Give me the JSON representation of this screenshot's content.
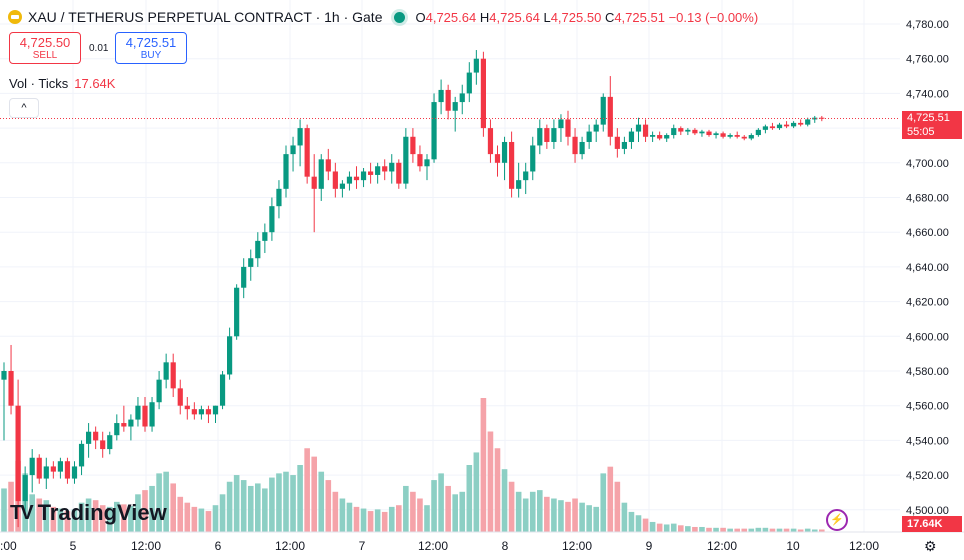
{
  "header": {
    "symbol_icon": "gold-coin-icon",
    "title": "XAU / TETHERUS PERPETUAL CONTRACT · 1h · Gate",
    "status_icon": "market-open-dot-icon",
    "o_label": "O",
    "o_value": "4,725.64",
    "h_label": "H",
    "h_value": "4,725.64",
    "l_label": "L",
    "l_value": "4,725.50",
    "c_label": "C",
    "c_value": "4,725.51",
    "change": "−0.13 (−0.00%)"
  },
  "trade": {
    "sell_price": "4,725.50",
    "sell_label": "SELL",
    "spread": "0.01",
    "buy_price": "4,725.51",
    "buy_label": "BUY"
  },
  "volume_legend": {
    "label": "Vol · Ticks",
    "value": "17.64K"
  },
  "collapse_icon": "chevron-up-icon",
  "logo": {
    "mark": "TV",
    "text": "TradingView"
  },
  "price_badge": {
    "price": "4,725.51",
    "countdown": "55:05"
  },
  "volume_badge": "17.64K",
  "bolt_icon": "lightning-icon",
  "settings_icon": "gear-icon",
  "colors": {
    "up": "#089981",
    "down": "#f23645",
    "up_vol": "#8ccfc4",
    "down_vol": "#f5a3a9",
    "grid": "#f0f3fa"
  },
  "chart_data": {
    "type": "candlestick",
    "x_tick_labels": [
      "5",
      "12:00",
      "6",
      "12:00",
      "7",
      "12:00",
      "8",
      "12:00",
      "9",
      "12:00",
      "10",
      "12:00"
    ],
    "y_tick_labels": [
      "4,780.00",
      "4,760.00",
      "4,740.00",
      "4,720.00",
      "4,700.00",
      "4,680.00",
      "4,660.00",
      "4,640.00",
      "4,620.00",
      "4,600.00",
      "4,580.00",
      "4,560.00",
      "4,540.00",
      "4,520.00",
      "4,500.00"
    ],
    "ylim": [
      4487,
      4792
    ],
    "last_price": 4725.51,
    "candles": [
      {
        "o": 4575,
        "h": 4585,
        "l": 4540,
        "c": 4580,
        "v": 52
      },
      {
        "o": 4580,
        "h": 4595,
        "l": 4555,
        "c": 4560,
        "v": 60
      },
      {
        "o": 4560,
        "h": 4575,
        "l": 4490,
        "c": 4505,
        "v": 85
      },
      {
        "o": 4505,
        "h": 4525,
        "l": 4495,
        "c": 4520,
        "v": 70
      },
      {
        "o": 4520,
        "h": 4535,
        "l": 4510,
        "c": 4530,
        "v": 45
      },
      {
        "o": 4530,
        "h": 4532,
        "l": 4515,
        "c": 4518,
        "v": 40
      },
      {
        "o": 4518,
        "h": 4530,
        "l": 4512,
        "c": 4525,
        "v": 38
      },
      {
        "o": 4525,
        "h": 4528,
        "l": 4518,
        "c": 4522,
        "v": 30
      },
      {
        "o": 4522,
        "h": 4530,
        "l": 4518,
        "c": 4528,
        "v": 28
      },
      {
        "o": 4528,
        "h": 4530,
        "l": 4515,
        "c": 4518,
        "v": 25
      },
      {
        "o": 4518,
        "h": 4528,
        "l": 4515,
        "c": 4525,
        "v": 27
      },
      {
        "o": 4525,
        "h": 4540,
        "l": 4520,
        "c": 4538,
        "v": 35
      },
      {
        "o": 4538,
        "h": 4550,
        "l": 4530,
        "c": 4545,
        "v": 40
      },
      {
        "o": 4545,
        "h": 4548,
        "l": 4535,
        "c": 4540,
        "v": 38
      },
      {
        "o": 4540,
        "h": 4545,
        "l": 4530,
        "c": 4535,
        "v": 32
      },
      {
        "o": 4535,
        "h": 4545,
        "l": 4532,
        "c": 4543,
        "v": 30
      },
      {
        "o": 4543,
        "h": 4555,
        "l": 4540,
        "c": 4550,
        "v": 36
      },
      {
        "o": 4550,
        "h": 4560,
        "l": 4545,
        "c": 4548,
        "v": 33
      },
      {
        "o": 4548,
        "h": 4555,
        "l": 4540,
        "c": 4552,
        "v": 31
      },
      {
        "o": 4552,
        "h": 4565,
        "l": 4548,
        "c": 4560,
        "v": 45
      },
      {
        "o": 4560,
        "h": 4565,
        "l": 4545,
        "c": 4548,
        "v": 50
      },
      {
        "o": 4548,
        "h": 4565,
        "l": 4545,
        "c": 4562,
        "v": 55
      },
      {
        "o": 4562,
        "h": 4580,
        "l": 4558,
        "c": 4575,
        "v": 70
      },
      {
        "o": 4575,
        "h": 4590,
        "l": 4570,
        "c": 4585,
        "v": 72
      },
      {
        "o": 4585,
        "h": 4590,
        "l": 4565,
        "c": 4570,
        "v": 58
      },
      {
        "o": 4570,
        "h": 4575,
        "l": 4555,
        "c": 4560,
        "v": 42
      },
      {
        "o": 4560,
        "h": 4565,
        "l": 4552,
        "c": 4558,
        "v": 35
      },
      {
        "o": 4558,
        "h": 4562,
        "l": 4552,
        "c": 4555,
        "v": 30
      },
      {
        "o": 4555,
        "h": 4560,
        "l": 4552,
        "c": 4558,
        "v": 28
      },
      {
        "o": 4558,
        "h": 4560,
        "l": 4550,
        "c": 4555,
        "v": 25
      },
      {
        "o": 4555,
        "h": 4560,
        "l": 4550,
        "c": 4560,
        "v": 32
      },
      {
        "o": 4560,
        "h": 4580,
        "l": 4558,
        "c": 4578,
        "v": 45
      },
      {
        "o": 4578,
        "h": 4605,
        "l": 4575,
        "c": 4600,
        "v": 60
      },
      {
        "o": 4600,
        "h": 4630,
        "l": 4598,
        "c": 4628,
        "v": 68
      },
      {
        "o": 4628,
        "h": 4645,
        "l": 4622,
        "c": 4640,
        "v": 62
      },
      {
        "o": 4640,
        "h": 4650,
        "l": 4632,
        "c": 4645,
        "v": 55
      },
      {
        "o": 4645,
        "h": 4660,
        "l": 4640,
        "c": 4655,
        "v": 58
      },
      {
        "o": 4655,
        "h": 4665,
        "l": 4648,
        "c": 4660,
        "v": 52
      },
      {
        "o": 4660,
        "h": 4680,
        "l": 4655,
        "c": 4675,
        "v": 65
      },
      {
        "o": 4675,
        "h": 4690,
        "l": 4668,
        "c": 4685,
        "v": 70
      },
      {
        "o": 4685,
        "h": 4710,
        "l": 4680,
        "c": 4705,
        "v": 72
      },
      {
        "o": 4705,
        "h": 4715,
        "l": 4695,
        "c": 4710,
        "v": 68
      },
      {
        "o": 4710,
        "h": 4725,
        "l": 4698,
        "c": 4720,
        "v": 80
      },
      {
        "o": 4720,
        "h": 4722,
        "l": 4688,
        "c": 4692,
        "v": 100
      },
      {
        "o": 4692,
        "h": 4705,
        "l": 4660,
        "c": 4685,
        "v": 90
      },
      {
        "o": 4685,
        "h": 4705,
        "l": 4678,
        "c": 4702,
        "v": 72
      },
      {
        "o": 4702,
        "h": 4708,
        "l": 4690,
        "c": 4695,
        "v": 62
      },
      {
        "o": 4695,
        "h": 4700,
        "l": 4680,
        "c": 4685,
        "v": 48
      },
      {
        "o": 4685,
        "h": 4690,
        "l": 4680,
        "c": 4688,
        "v": 40
      },
      {
        "o": 4688,
        "h": 4695,
        "l": 4684,
        "c": 4692,
        "v": 35
      },
      {
        "o": 4692,
        "h": 4698,
        "l": 4685,
        "c": 4690,
        "v": 30
      },
      {
        "o": 4690,
        "h": 4697,
        "l": 4686,
        "c": 4695,
        "v": 28
      },
      {
        "o": 4695,
        "h": 4700,
        "l": 4688,
        "c": 4693,
        "v": 25
      },
      {
        "o": 4693,
        "h": 4700,
        "l": 4688,
        "c": 4698,
        "v": 27
      },
      {
        "o": 4698,
        "h": 4702,
        "l": 4690,
        "c": 4695,
        "v": 24
      },
      {
        "o": 4695,
        "h": 4705,
        "l": 4688,
        "c": 4700,
        "v": 30
      },
      {
        "o": 4700,
        "h": 4702,
        "l": 4685,
        "c": 4688,
        "v": 32
      },
      {
        "o": 4688,
        "h": 4720,
        "l": 4685,
        "c": 4715,
        "v": 55
      },
      {
        "o": 4715,
        "h": 4720,
        "l": 4700,
        "c": 4705,
        "v": 48
      },
      {
        "o": 4705,
        "h": 4710,
        "l": 4695,
        "c": 4698,
        "v": 40
      },
      {
        "o": 4698,
        "h": 4705,
        "l": 4690,
        "c": 4702,
        "v": 32
      },
      {
        "o": 4702,
        "h": 4740,
        "l": 4700,
        "c": 4735,
        "v": 62
      },
      {
        "o": 4735,
        "h": 4748,
        "l": 4728,
        "c": 4742,
        "v": 70
      },
      {
        "o": 4742,
        "h": 4745,
        "l": 4725,
        "c": 4730,
        "v": 55
      },
      {
        "o": 4730,
        "h": 4738,
        "l": 4718,
        "c": 4735,
        "v": 45
      },
      {
        "o": 4735,
        "h": 4745,
        "l": 4728,
        "c": 4740,
        "v": 48
      },
      {
        "o": 4740,
        "h": 4758,
        "l": 4735,
        "c": 4752,
        "v": 80
      },
      {
        "o": 4752,
        "h": 4765,
        "l": 4745,
        "c": 4760,
        "v": 95
      },
      {
        "o": 4760,
        "h": 4764,
        "l": 4715,
        "c": 4720,
        "v": 160
      },
      {
        "o": 4720,
        "h": 4725,
        "l": 4700,
        "c": 4705,
        "v": 120
      },
      {
        "o": 4705,
        "h": 4710,
        "l": 4692,
        "c": 4700,
        "v": 100
      },
      {
        "o": 4700,
        "h": 4715,
        "l": 4690,
        "c": 4712,
        "v": 75
      },
      {
        "o": 4712,
        "h": 4718,
        "l": 4680,
        "c": 4685,
        "v": 60
      },
      {
        "o": 4685,
        "h": 4700,
        "l": 4680,
        "c": 4690,
        "v": 48
      },
      {
        "o": 4690,
        "h": 4700,
        "l": 4682,
        "c": 4695,
        "v": 40
      },
      {
        "o": 4695,
        "h": 4715,
        "l": 4690,
        "c": 4710,
        "v": 48
      },
      {
        "o": 4710,
        "h": 4725,
        "l": 4705,
        "c": 4720,
        "v": 50
      },
      {
        "o": 4720,
        "h": 4722,
        "l": 4708,
        "c": 4712,
        "v": 42
      },
      {
        "o": 4712,
        "h": 4725,
        "l": 4708,
        "c": 4720,
        "v": 40
      },
      {
        "o": 4720,
        "h": 4728,
        "l": 4712,
        "c": 4725,
        "v": 38
      },
      {
        "o": 4725,
        "h": 4730,
        "l": 4710,
        "c": 4715,
        "v": 36
      },
      {
        "o": 4715,
        "h": 4720,
        "l": 4700,
        "c": 4705,
        "v": 40
      },
      {
        "o": 4705,
        "h": 4715,
        "l": 4702,
        "c": 4712,
        "v": 35
      },
      {
        "o": 4712,
        "h": 4722,
        "l": 4708,
        "c": 4718,
        "v": 32
      },
      {
        "o": 4718,
        "h": 4725,
        "l": 4712,
        "c": 4722,
        "v": 30
      },
      {
        "o": 4722,
        "h": 4740,
        "l": 4718,
        "c": 4738,
        "v": 70
      },
      {
        "o": 4738,
        "h": 4750,
        "l": 4710,
        "c": 4715,
        "v": 78
      },
      {
        "o": 4715,
        "h": 4720,
        "l": 4703,
        "c": 4708,
        "v": 60
      },
      {
        "o": 4708,
        "h": 4715,
        "l": 4705,
        "c": 4712,
        "v": 35
      },
      {
        "o": 4712,
        "h": 4720,
        "l": 4708,
        "c": 4718,
        "v": 24
      },
      {
        "o": 4718,
        "h": 4726,
        "l": 4712,
        "c": 4722,
        "v": 20
      },
      {
        "o": 4722,
        "h": 4725,
        "l": 4712,
        "c": 4715,
        "v": 16
      },
      {
        "o": 4715,
        "h": 4718,
        "l": 4712,
        "c": 4716,
        "v": 12
      },
      {
        "o": 4716,
        "h": 4718,
        "l": 4713,
        "c": 4714,
        "v": 10
      },
      {
        "o": 4714,
        "h": 4717,
        "l": 4712,
        "c": 4716,
        "v": 9
      },
      {
        "o": 4716,
        "h": 4722,
        "l": 4714,
        "c": 4720,
        "v": 10
      },
      {
        "o": 4720,
        "h": 4721,
        "l": 4716,
        "c": 4718,
        "v": 8
      },
      {
        "o": 4718,
        "h": 4720,
        "l": 4716,
        "c": 4719,
        "v": 7
      },
      {
        "o": 4719,
        "h": 4720,
        "l": 4716,
        "c": 4717,
        "v": 6
      },
      {
        "o": 4717,
        "h": 4719,
        "l": 4715,
        "c": 4718,
        "v": 6
      },
      {
        "o": 4718,
        "h": 4719,
        "l": 4715,
        "c": 4716,
        "v": 5
      },
      {
        "o": 4716,
        "h": 4718,
        "l": 4714,
        "c": 4717,
        "v": 5
      },
      {
        "o": 4717,
        "h": 4718,
        "l": 4714,
        "c": 4715,
        "v": 5
      },
      {
        "o": 4715,
        "h": 4717,
        "l": 4714,
        "c": 4716,
        "v": 4
      },
      {
        "o": 4716,
        "h": 4718,
        "l": 4714,
        "c": 4715,
        "v": 4
      },
      {
        "o": 4715,
        "h": 4716,
        "l": 4713,
        "c": 4714,
        "v": 4
      },
      {
        "o": 4714,
        "h": 4717,
        "l": 4713,
        "c": 4716,
        "v": 4
      },
      {
        "o": 4716,
        "h": 4720,
        "l": 4715,
        "c": 4719,
        "v": 5
      },
      {
        "o": 4719,
        "h": 4722,
        "l": 4717,
        "c": 4721,
        "v": 5
      },
      {
        "o": 4721,
        "h": 4723,
        "l": 4719,
        "c": 4720,
        "v": 4
      },
      {
        "o": 4720,
        "h": 4723,
        "l": 4719,
        "c": 4722,
        "v": 4
      },
      {
        "o": 4722,
        "h": 4724,
        "l": 4720,
        "c": 4721,
        "v": 4
      },
      {
        "o": 4721,
        "h": 4724,
        "l": 4720,
        "c": 4723,
        "v": 4
      },
      {
        "o": 4723,
        "h": 4725,
        "l": 4721,
        "c": 4722,
        "v": 3
      },
      {
        "o": 4722,
        "h": 4726,
        "l": 4721,
        "c": 4725,
        "v": 4
      },
      {
        "o": 4725,
        "h": 4727,
        "l": 4723,
        "c": 4726,
        "v": 3
      },
      {
        "o": 4726,
        "h": 4727,
        "l": 4724,
        "c": 4725.51,
        "v": 3
      }
    ]
  }
}
